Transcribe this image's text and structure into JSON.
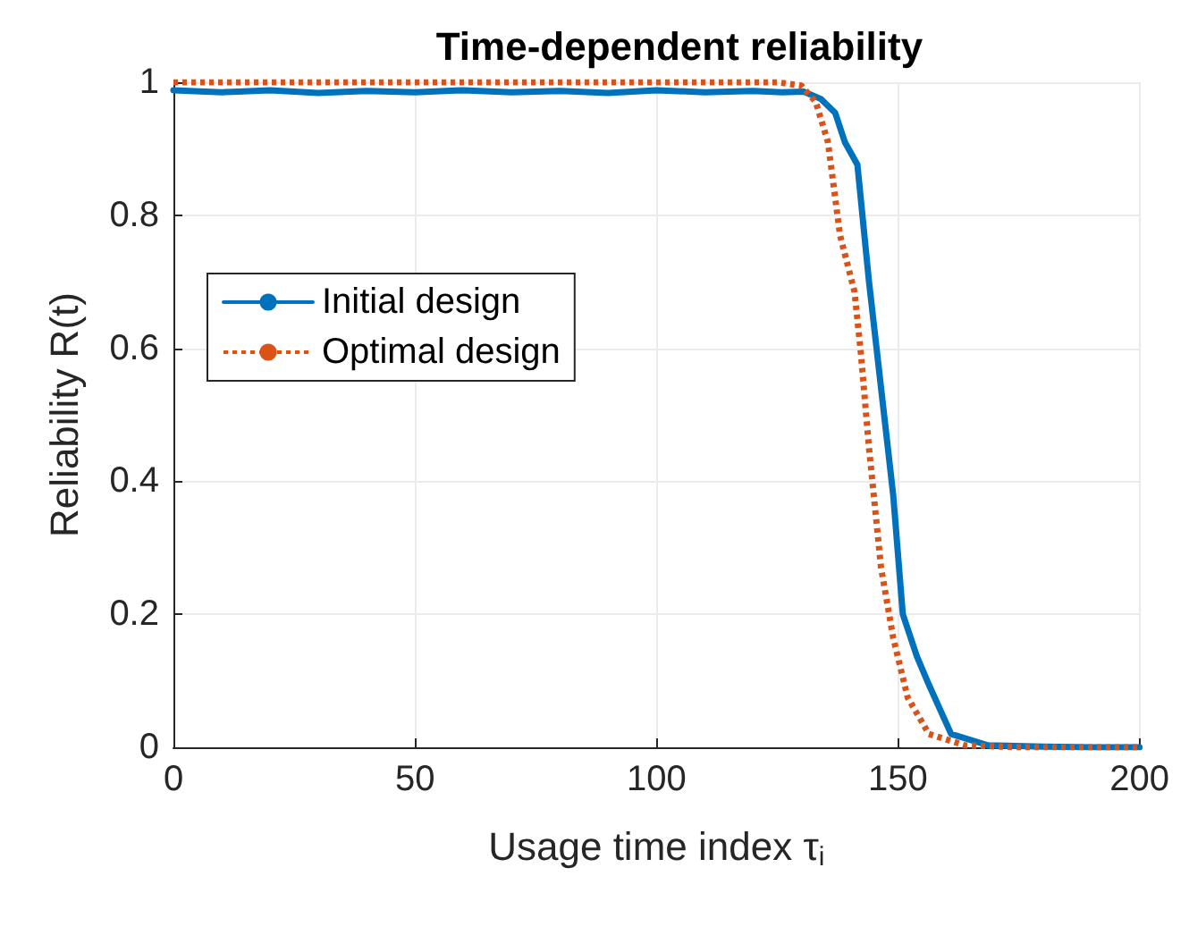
{
  "chart_data": {
    "type": "line",
    "title": "Time-dependent reliability",
    "xlabel": "Usage time index τ$_{i}$",
    "ylabel": "Reliability R(t)",
    "xlim": [
      0,
      200
    ],
    "xticks": [
      0,
      50,
      100,
      150,
      200
    ],
    "ylim": [
      0,
      1
    ],
    "yticks": [
      0,
      0.2,
      0.4,
      0.6,
      0.8,
      1
    ],
    "grid": true,
    "legend": "left",
    "marker": "none",
    "series": [
      {
        "name": "Initial design",
        "color": "#0072bd",
        "line_style": "solid",
        "x": [
          0,
          10,
          20,
          30,
          40,
          50,
          60,
          70,
          80,
          90,
          100,
          110,
          120,
          126,
          130.5,
          134,
          137,
          139,
          141.6,
          144,
          146.5,
          149,
          151,
          153.9,
          156.4,
          161,
          168.6,
          180,
          190,
          200
        ],
        "values": [
          0.988,
          0.985,
          0.988,
          0.984,
          0.987,
          0.985,
          0.988,
          0.985,
          0.987,
          0.984,
          0.988,
          0.985,
          0.987,
          0.985,
          0.986,
          0.975,
          0.954,
          0.91,
          0.876,
          0.7,
          0.54,
          0.38,
          0.2,
          0.137,
          0.094,
          0.02,
          0.003,
          0.001,
          0,
          0
        ]
      },
      {
        "name": "Optimal design",
        "color": "#d95319",
        "line_style": "dotted",
        "x": [
          0,
          50,
          100,
          125,
          130,
          133,
          135.5,
          138,
          141,
          142.3,
          144,
          146.5,
          149,
          152,
          156.4,
          163.8,
          175,
          200
        ],
        "values": [
          1,
          1,
          1,
          1,
          0.995,
          0.97,
          0.91,
          0.77,
          0.685,
          0.594,
          0.45,
          0.27,
          0.165,
          0.075,
          0.02,
          0.003,
          0,
          0
        ]
      }
    ]
  }
}
